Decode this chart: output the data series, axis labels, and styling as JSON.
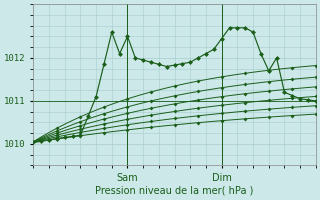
{
  "xlabel": "Pression niveau de la mer( hPa )",
  "bg_color": "#cce8e8",
  "grid_color": "#a8cccc",
  "line_color": "#1a5e1a",
  "marker_color": "#1a5e1a",
  "ylim": [
    1009.6,
    1012.9
  ],
  "xlim": [
    0,
    72
  ],
  "yticks": [
    1010,
    1011,
    1012
  ],
  "xtick_positions": [
    24,
    48
  ],
  "xtick_labels": [
    "Sam",
    "Dim"
  ],
  "vline_positions": [
    24,
    48
  ],
  "figsize": [
    3.2,
    2.0
  ],
  "dpi": 100
}
